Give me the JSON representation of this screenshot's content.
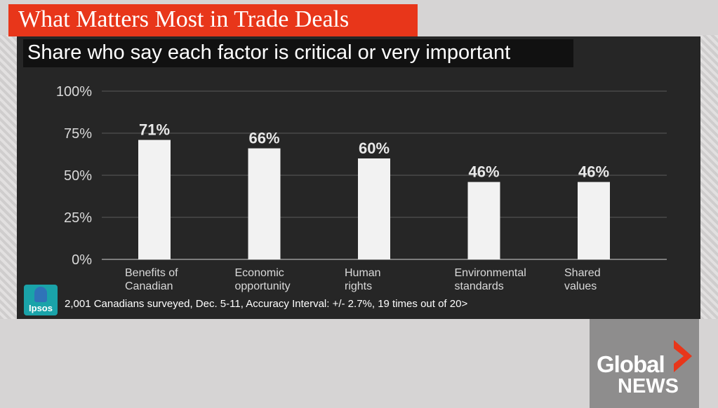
{
  "title": "What Matters Most in Trade Deals",
  "subtitle": "Share who say each factor is critical or very important",
  "footnote": "2,001 Canadians surveyed, Dec. 5-11, Accuracy Interval: +/- 2.7%, 19 times out of 20>",
  "source_logo": "Ipsos",
  "broadcaster": {
    "line1": "Global",
    "line2": "NEWS"
  },
  "colors": {
    "banner": "#e8361a",
    "panel": "#262626",
    "bar": "#f2f2f2",
    "ipsos": "#1aa3a9",
    "chevron": "#e8361a"
  },
  "chart_data": {
    "type": "bar",
    "categories": [
      [
        "Benefits of",
        "Canadian"
      ],
      [
        "Economic",
        "opportunity"
      ],
      [
        "Human",
        "rights"
      ],
      [
        "Environmental",
        "standards"
      ],
      [
        "Shared",
        "values"
      ]
    ],
    "values": [
      71,
      66,
      60,
      46,
      46
    ],
    "value_labels": [
      "71%",
      "66%",
      "60%",
      "46%",
      "46%"
    ],
    "yticks": [
      "0%",
      "25%",
      "50%",
      "75%",
      "100%"
    ],
    "ytick_values": [
      0,
      25,
      50,
      75,
      100
    ],
    "ylim": [
      0,
      100
    ],
    "grid": true,
    "legend": "none"
  }
}
